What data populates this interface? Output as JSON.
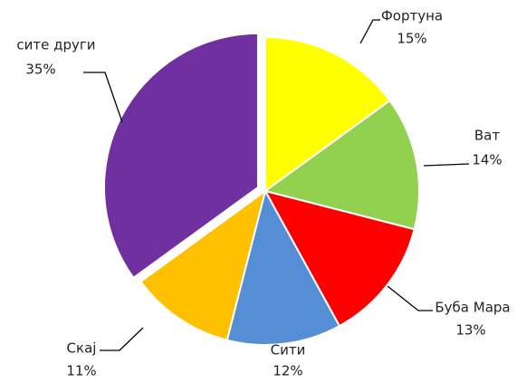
{
  "chart_data": {
    "type": "pie",
    "categories": [
      "Фортуна",
      "Ват",
      "Буба Мара",
      "Сити",
      "Скај",
      "сите други"
    ],
    "values": [
      15,
      14,
      13,
      12,
      11,
      35
    ],
    "value_labels": [
      "15%",
      "14%",
      "13%",
      "12%",
      "11%",
      "35%"
    ],
    "colors": [
      "#ffff00",
      "#92d050",
      "#ff0000",
      "#558ed5",
      "#ffc000",
      "#7030a0"
    ],
    "exploded": [
      5
    ]
  }
}
